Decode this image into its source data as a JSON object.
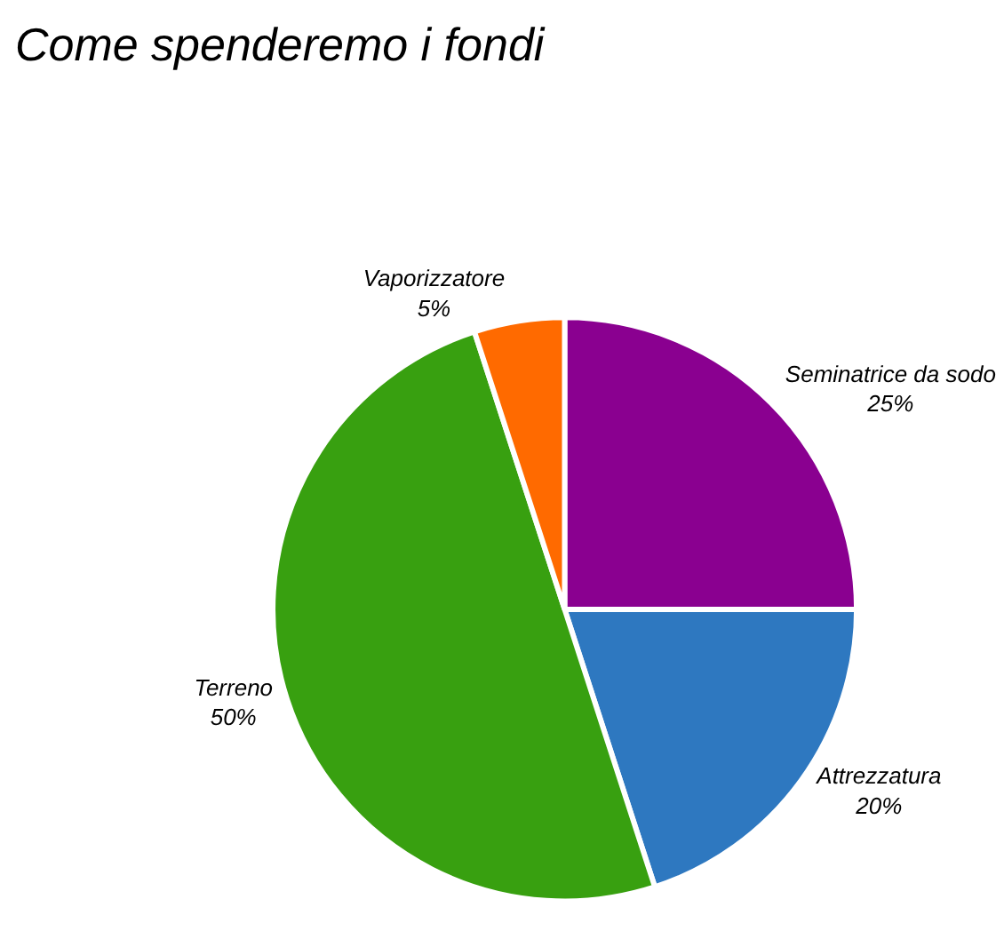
{
  "chart_data": {
    "type": "pie",
    "title": "Come spenderemo i fondi",
    "categories": [
      "Seminatrice da sodo",
      "Attrezzatura",
      "Terreno",
      "Vaporizzatore"
    ],
    "values": [
      25,
      20,
      50,
      5
    ],
    "value_labels": [
      "25%",
      "20%",
      "50%",
      "5%"
    ],
    "colors": [
      "#8a0090",
      "#2e78c0",
      "#38a010",
      "#ff6a00"
    ],
    "legend": false
  }
}
